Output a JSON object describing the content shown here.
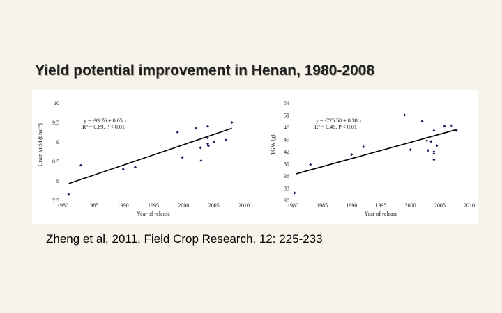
{
  "slide": {
    "title": "Yield potential improvement in Henan, 1980-2008",
    "citation": "Zheng et al, 2011, Field Crop Research, 12: 225-233"
  },
  "chart_data": [
    {
      "type": "scatter",
      "title": "",
      "xlabel": "Year of release",
      "ylabel": "Grain yield (t ha⁻¹)",
      "xlim": [
        1980,
        2010
      ],
      "ylim": [
        7.5,
        10
      ],
      "xticks": [
        1980,
        1985,
        1990,
        1995,
        2000,
        2005,
        2010
      ],
      "yticks": [
        7.5,
        8,
        8.5,
        9,
        9.5,
        10
      ],
      "equation": "y = -93.76 + 0.05 x",
      "stats": "R² = 0.69, P < 0.01",
      "trendline": {
        "x": [
          1981,
          2008
        ],
        "y": [
          7.93,
          9.35
        ]
      },
      "points": [
        {
          "x": 1981,
          "y": 7.65
        },
        {
          "x": 1983,
          "y": 8.4
        },
        {
          "x": 1990,
          "y": 8.3
        },
        {
          "x": 1992,
          "y": 8.35
        },
        {
          "x": 1999,
          "y": 9.25
        },
        {
          "x": 1999.8,
          "y": 8.6
        },
        {
          "x": 2002,
          "y": 9.35
        },
        {
          "x": 2002.8,
          "y": 8.85
        },
        {
          "x": 2002.9,
          "y": 8.52
        },
        {
          "x": 2004,
          "y": 9.4
        },
        {
          "x": 2004,
          "y": 9.1
        },
        {
          "x": 2004,
          "y": 8.95
        },
        {
          "x": 2004.1,
          "y": 8.9
        },
        {
          "x": 2005,
          "y": 9.0
        },
        {
          "x": 2007,
          "y": 9.05
        },
        {
          "x": 2008,
          "y": 9.5
        }
      ]
    },
    {
      "type": "scatter",
      "title": "",
      "xlabel": "Year of release",
      "ylabel": "TGW (g)",
      "xlim": [
        1980,
        2010
      ],
      "ylim": [
        30,
        54
      ],
      "xticks": [
        1980,
        1985,
        1990,
        1995,
        2000,
        2005,
        2010
      ],
      "yticks": [
        30,
        33,
        36,
        39,
        42,
        45,
        48,
        51,
        54
      ],
      "equation": "y = -725.58 + 0.38 x",
      "stats": "R² = 0.45, P < 0.01",
      "trendline": {
        "x": [
          1980.5,
          2008
        ],
        "y": [
          36.5,
          47.5
        ]
      },
      "points": [
        {
          "x": 1980.3,
          "y": 31.8
        },
        {
          "x": 1983,
          "y": 38.8
        },
        {
          "x": 1990,
          "y": 41.3
        },
        {
          "x": 1992,
          "y": 43.2
        },
        {
          "x": 1999,
          "y": 51.0
        },
        {
          "x": 2000,
          "y": 42.5
        },
        {
          "x": 2002,
          "y": 49.5
        },
        {
          "x": 2002.8,
          "y": 44.7
        },
        {
          "x": 2003,
          "y": 42.3
        },
        {
          "x": 2003.5,
          "y": 44.5
        },
        {
          "x": 2004,
          "y": 47.2
        },
        {
          "x": 2004,
          "y": 42.0
        },
        {
          "x": 2004,
          "y": 41.5
        },
        {
          "x": 2004,
          "y": 40.0
        },
        {
          "x": 2004.5,
          "y": 43.5
        },
        {
          "x": 2005.8,
          "y": 48.3
        },
        {
          "x": 2007,
          "y": 48.4
        },
        {
          "x": 2007.8,
          "y": 47.2
        }
      ]
    }
  ]
}
